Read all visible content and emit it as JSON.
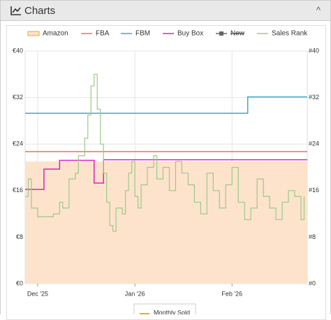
{
  "header": {
    "title": "Charts"
  },
  "chart_data": {
    "type": "step",
    "xlim": [
      -4,
      86
    ],
    "xticks": [
      {
        "value": 0,
        "label": "Dec '25"
      },
      {
        "value": 31,
        "label": "Jan '26"
      },
      {
        "value": 62,
        "label": "Feb '26"
      }
    ],
    "ylim": [
      0,
      40
    ],
    "yticks": [
      {
        "value": 0,
        "label": "€0"
      },
      {
        "value": 8,
        "label": "€8"
      },
      {
        "value": 16,
        "label": "€16"
      },
      {
        "value": 24,
        "label": "€24"
      },
      {
        "value": 32,
        "label": "€32"
      },
      {
        "value": 40,
        "label": "€40"
      }
    ],
    "y2lim": [
      0,
      40
    ],
    "y2ticks": [
      {
        "value": 0,
        "label": "#0"
      },
      {
        "value": 8,
        "label": "#8"
      },
      {
        "value": 16,
        "label": "#16"
      },
      {
        "value": 24,
        "label": "#24"
      },
      {
        "value": 32,
        "label": "#32"
      },
      {
        "value": 40,
        "label": "#40"
      }
    ],
    "grid": true,
    "series": [
      {
        "name": "Amazon",
        "color": "#f5a623",
        "fill": "#fde3cc",
        "area": true,
        "x": [
          -4,
          86
        ],
        "values": [
          21,
          21
        ]
      },
      {
        "name": "FBA",
        "color": "#f07050",
        "x": [
          -4,
          86
        ],
        "values": [
          22.7,
          22.7
        ]
      },
      {
        "name": "FBM",
        "color": "#3aa8d8",
        "x": [
          -4,
          67,
          86
        ],
        "values": [
          29.3,
          32.1,
          32.1
        ]
      },
      {
        "name": "Buy Box",
        "color": "#e020b8",
        "x": [
          -4,
          2,
          7,
          18,
          21,
          86
        ],
        "values": [
          16.2,
          19.7,
          21.2,
          17.3,
          21.3,
          21.3
        ]
      },
      {
        "name": "New",
        "color": "#666666",
        "hidden": true,
        "x": [],
        "values": []
      },
      {
        "name": "Sales Rank",
        "color": "#9cc98a",
        "axis": "y2",
        "x": [
          -4,
          -3,
          -2,
          0,
          5,
          7,
          8,
          10,
          12,
          13,
          15,
          16,
          17,
          18,
          19,
          20,
          21,
          22,
          23,
          24,
          25,
          27,
          28,
          29,
          30,
          31,
          32,
          33,
          35,
          37,
          38,
          40,
          42,
          44,
          46,
          48,
          50,
          52,
          54,
          56,
          58,
          60,
          62,
          64,
          66,
          68,
          70,
          72,
          74,
          76,
          78,
          80,
          82,
          84,
          85
        ],
        "values": [
          15,
          18,
          13,
          11.5,
          12,
          14,
          13,
          18,
          19,
          22,
          25,
          29,
          34,
          36,
          30,
          24,
          19,
          14,
          10,
          9,
          13,
          12,
          16,
          19,
          21,
          15,
          13,
          17,
          20,
          22,
          18,
          20,
          16,
          21,
          19,
          17,
          14,
          12,
          19,
          16,
          13,
          17,
          20,
          14,
          11,
          13,
          18,
          15,
          13,
          11,
          14,
          16,
          15,
          11,
          15
        ]
      }
    ],
    "extra_legend": {
      "name": "Monthly Sold",
      "color": "#f5a623"
    }
  }
}
